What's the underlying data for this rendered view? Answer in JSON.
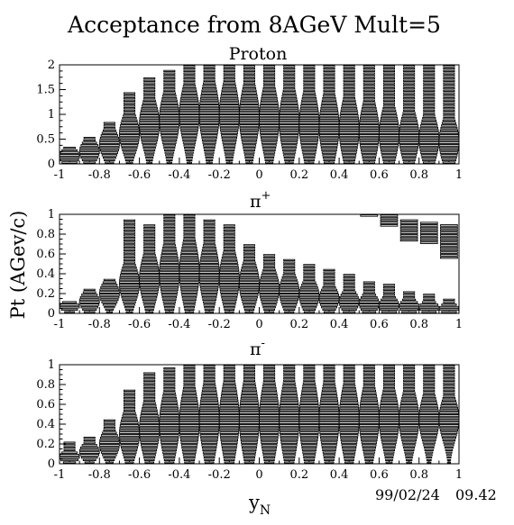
{
  "title": "Acceptance from 8AGeV Mult=5",
  "ylabel": "Pt (AGev/c)",
  "xlabel_main": "y",
  "xlabel_sub": "N",
  "date": "99/02/24",
  "time": "09.42",
  "chart_data": [
    {
      "type": "heatmap",
      "name": "Proton",
      "title": "Proton",
      "xlim": [
        -1,
        1
      ],
      "ylim": [
        0,
        2
      ],
      "x_ticks": [
        "-1",
        "-0.8",
        "-0.6",
        "-0.4",
        "-0.2",
        "0",
        "0.2",
        "0.4",
        "0.6",
        "0.8",
        "1"
      ],
      "y_ticks": [
        "0",
        "0.5",
        "1",
        "1.5",
        "2"
      ],
      "y_tick_values": [
        0,
        0.5,
        1,
        1.5,
        2
      ],
      "x_bins": [
        -0.95,
        -0.85,
        -0.75,
        -0.65,
        -0.55,
        -0.45,
        -0.35,
        -0.25,
        -0.15,
        -0.05,
        0.05,
        0.15,
        0.25,
        0.35,
        0.45,
        0.55,
        0.65,
        0.75,
        0.85,
        0.95
      ],
      "y_bin_width": 0.05,
      "acceptance_max_pt": [
        0.35,
        0.55,
        0.85,
        1.45,
        1.75,
        1.9,
        2.0,
        2.0,
        2.0,
        2.0,
        2.0,
        2.0,
        2.0,
        2.0,
        2.0,
        2.0,
        2.0,
        2.0,
        2.0,
        2.0
      ],
      "peak_pt": [
        0.15,
        0.25,
        0.4,
        0.6,
        0.8,
        0.9,
        1.0,
        1.0,
        1.0,
        0.95,
        0.9,
        0.85,
        0.8,
        0.75,
        0.7,
        0.65,
        0.6,
        0.55,
        0.5,
        0.45
      ],
      "width_pt": [
        0.35,
        0.45,
        0.6,
        0.8,
        1.0,
        1.1,
        1.2,
        1.3,
        1.3,
        1.3,
        1.3,
        1.3,
        1.3,
        1.3,
        1.25,
        1.2,
        1.1,
        1.0,
        0.95,
        0.9
      ]
    },
    {
      "type": "heatmap",
      "name": "pi+",
      "title_main": "π",
      "title_sup": "+",
      "xlim": [
        -1,
        1
      ],
      "ylim": [
        0,
        1
      ],
      "x_ticks": [
        "-1",
        "-0.8",
        "-0.6",
        "-0.4",
        "-0.2",
        "0",
        "0.2",
        "0.4",
        "0.6",
        "0.8",
        "1"
      ],
      "y_ticks": [
        "0",
        "0.2",
        "0.4",
        "0.6",
        "0.8",
        "1"
      ],
      "y_tick_values": [
        0,
        0.2,
        0.4,
        0.6,
        0.8,
        1
      ],
      "x_bins": [
        -0.95,
        -0.85,
        -0.75,
        -0.65,
        -0.55,
        -0.45,
        -0.35,
        -0.25,
        -0.15,
        -0.05,
        0.05,
        0.15,
        0.25,
        0.35,
        0.45,
        0.55,
        0.65,
        0.75,
        0.85,
        0.95
      ],
      "y_bin_width": 0.025,
      "acceptance_max_pt": [
        0.12,
        0.25,
        0.35,
        0.95,
        0.9,
        1.0,
        1.0,
        0.95,
        0.9,
        0.7,
        0.6,
        0.55,
        0.5,
        0.45,
        0.4,
        0.33,
        0.3,
        0.22,
        0.2,
        0.15
      ],
      "peak_pt": [
        0.07,
        0.12,
        0.2,
        0.3,
        0.35,
        0.4,
        0.42,
        0.4,
        0.35,
        0.3,
        0.25,
        0.22,
        0.18,
        0.15,
        0.12,
        0.1,
        0.08,
        0.07,
        0.06,
        0.05
      ],
      "width_pt": [
        0.1,
        0.2,
        0.25,
        0.4,
        0.5,
        0.6,
        0.65,
        0.6,
        0.55,
        0.45,
        0.4,
        0.35,
        0.3,
        0.25,
        0.22,
        0.2,
        0.18,
        0.15,
        0.12,
        0.1
      ],
      "extra_islands": [
        {
          "x": 0.55,
          "pt_min": 0.97,
          "pt_max": 1.0
        },
        {
          "x": 0.65,
          "pt_min": 0.88,
          "pt_max": 1.0
        },
        {
          "x": 0.75,
          "pt_min": 0.72,
          "pt_max": 0.95
        },
        {
          "x": 0.85,
          "pt_min": 0.7,
          "pt_max": 0.92
        },
        {
          "x": 0.95,
          "pt_min": 0.55,
          "pt_max": 0.9
        }
      ]
    },
    {
      "type": "heatmap",
      "name": "pi-",
      "title_main": "π",
      "title_sup": "-",
      "xlim": [
        -1,
        1
      ],
      "ylim": [
        0,
        1
      ],
      "x_ticks": [
        "-1",
        "-0.8",
        "-0.6",
        "-0.4",
        "-0.2",
        "0",
        "0.2",
        "0.4",
        "0.6",
        "0.8",
        "1"
      ],
      "y_ticks": [
        "0",
        "0.2",
        "0.4",
        "0.6",
        "0.8",
        "1"
      ],
      "y_tick_values": [
        0,
        0.2,
        0.4,
        0.6,
        0.8,
        1
      ],
      "x_bins": [
        -0.95,
        -0.85,
        -0.75,
        -0.65,
        -0.55,
        -0.45,
        -0.35,
        -0.25,
        -0.15,
        -0.05,
        0.05,
        0.15,
        0.25,
        0.35,
        0.45,
        0.55,
        0.65,
        0.75,
        0.85,
        0.95
      ],
      "y_bin_width": 0.025,
      "acceptance_max_pt": [
        0.22,
        0.28,
        0.45,
        0.75,
        0.92,
        0.98,
        1.0,
        1.0,
        1.0,
        1.0,
        1.0,
        1.0,
        1.0,
        1.0,
        1.0,
        1.0,
        1.0,
        1.0,
        1.0,
        1.0
      ],
      "peak_pt": [
        0.07,
        0.12,
        0.2,
        0.3,
        0.35,
        0.4,
        0.42,
        0.45,
        0.45,
        0.45,
        0.45,
        0.45,
        0.45,
        0.45,
        0.45,
        0.45,
        0.45,
        0.45,
        0.45,
        0.45
      ],
      "width_pt": [
        0.12,
        0.18,
        0.28,
        0.45,
        0.55,
        0.65,
        0.7,
        0.72,
        0.75,
        0.75,
        0.75,
        0.75,
        0.75,
        0.72,
        0.7,
        0.65,
        0.6,
        0.55,
        0.5,
        0.45
      ]
    }
  ]
}
